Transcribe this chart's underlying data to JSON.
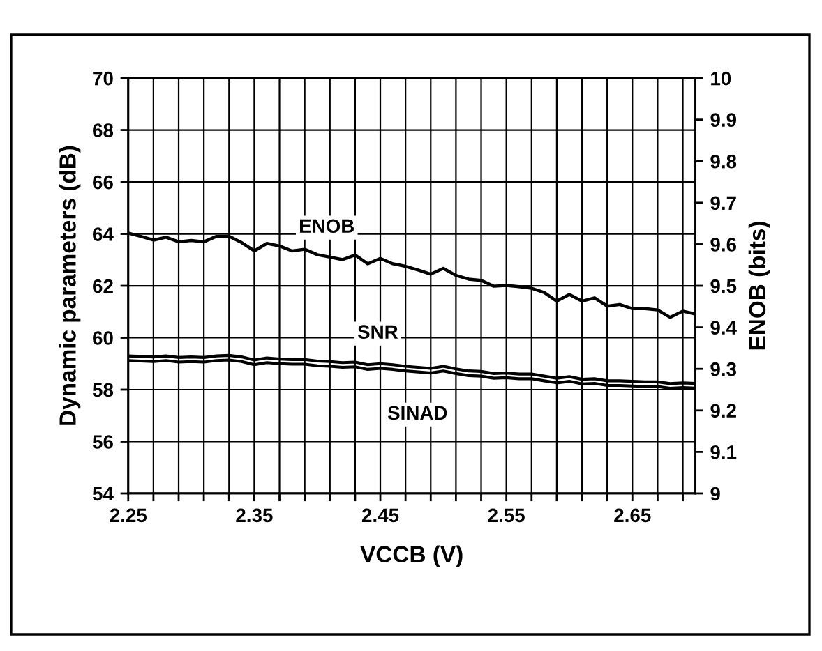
{
  "chart_data": {
    "type": "line",
    "xlabel": "VCCB (V)",
    "ylabel": "Dynamic parameters (dB)",
    "y2label": "ENOB (bits)",
    "x": [
      2.25,
      2.26,
      2.27,
      2.28,
      2.29,
      2.3,
      2.31,
      2.32,
      2.33,
      2.34,
      2.35,
      2.36,
      2.37,
      2.38,
      2.39,
      2.4,
      2.41,
      2.42,
      2.43,
      2.44,
      2.45,
      2.46,
      2.47,
      2.48,
      2.49,
      2.5,
      2.51,
      2.52,
      2.53,
      2.54,
      2.55,
      2.56,
      2.57,
      2.58,
      2.59,
      2.6,
      2.61,
      2.62,
      2.63,
      2.64,
      2.65,
      2.66,
      2.67,
      2.68,
      2.69,
      2.7
    ],
    "series": [
      {
        "name": "ENOB",
        "axis": "y2",
        "color": "#000000",
        "values": [
          9.627,
          9.619,
          9.61,
          9.617,
          9.606,
          9.609,
          9.606,
          9.619,
          9.619,
          9.604,
          9.584,
          9.602,
          9.596,
          9.584,
          9.588,
          9.575,
          9.569,
          9.563,
          9.574,
          9.553,
          9.566,
          9.553,
          9.547,
          9.538,
          9.528,
          9.542,
          9.525,
          9.516,
          9.513,
          9.499,
          9.501,
          9.498,
          9.494,
          9.484,
          9.463,
          9.479,
          9.463,
          9.471,
          9.451,
          9.455,
          9.445,
          9.445,
          9.442,
          9.424,
          9.439,
          9.432
        ]
      },
      {
        "name": "SNR",
        "color": "#000000",
        "values": [
          59.3,
          59.28,
          59.26,
          59.3,
          59.24,
          59.26,
          59.24,
          59.3,
          59.32,
          59.26,
          59.14,
          59.22,
          59.18,
          59.16,
          59.16,
          59.1,
          59.08,
          59.04,
          59.06,
          58.96,
          59.0,
          58.96,
          58.9,
          58.86,
          58.82,
          58.9,
          58.8,
          58.72,
          58.7,
          58.62,
          58.64,
          58.6,
          58.6,
          58.52,
          58.44,
          58.5,
          58.4,
          58.42,
          58.34,
          58.34,
          58.32,
          58.3,
          58.3,
          58.23,
          58.26,
          58.24
        ]
      },
      {
        "name": "SINAD",
        "color": "#000000",
        "values": [
          59.12,
          59.1,
          59.08,
          59.12,
          59.06,
          59.08,
          59.06,
          59.12,
          59.14,
          59.08,
          58.96,
          59.04,
          59.0,
          58.98,
          58.98,
          58.92,
          58.9,
          58.86,
          58.88,
          58.78,
          58.82,
          58.78,
          58.72,
          58.68,
          58.64,
          58.72,
          58.62,
          58.54,
          58.52,
          58.44,
          58.46,
          58.42,
          58.42,
          58.34,
          58.26,
          58.32,
          58.22,
          58.24,
          58.16,
          58.16,
          58.14,
          58.12,
          58.12,
          58.05,
          58.08,
          58.06
        ]
      }
    ],
    "xlim": [
      2.25,
      2.7
    ],
    "xticks": [
      2.25,
      {
        "value": 2.27,
        "label": null
      },
      {
        "value": 2.29,
        "label": null
      },
      {
        "value": 2.31,
        "label": null
      },
      {
        "value": 2.33,
        "label": null
      },
      2.35,
      {
        "value": 2.37,
        "label": null
      },
      {
        "value": 2.39,
        "label": null
      },
      {
        "value": 2.41,
        "label": null
      },
      {
        "value": 2.43,
        "label": null
      },
      2.45,
      {
        "value": 2.47,
        "label": null
      },
      {
        "value": 2.49,
        "label": null
      },
      {
        "value": 2.51,
        "label": null
      },
      {
        "value": 2.53,
        "label": null
      },
      2.55,
      {
        "value": 2.57,
        "label": null
      },
      {
        "value": 2.59,
        "label": null
      },
      {
        "value": 2.61,
        "label": null
      },
      {
        "value": 2.63,
        "label": null
      },
      2.65,
      {
        "value": 2.67,
        "label": null
      },
      {
        "value": 2.69,
        "label": null
      }
    ],
    "ylim": [
      54,
      70
    ],
    "yticks": [
      54,
      56,
      58,
      60,
      62,
      64,
      66,
      68,
      70
    ],
    "y2lim": [
      9,
      10
    ],
    "y2ticks": [
      9,
      9.1,
      9.2,
      9.3,
      9.4,
      9.5,
      9.6,
      9.7,
      9.8,
      9.9,
      10
    ],
    "grid": true,
    "legend": false,
    "marker": "none",
    "line_style": "solid"
  }
}
